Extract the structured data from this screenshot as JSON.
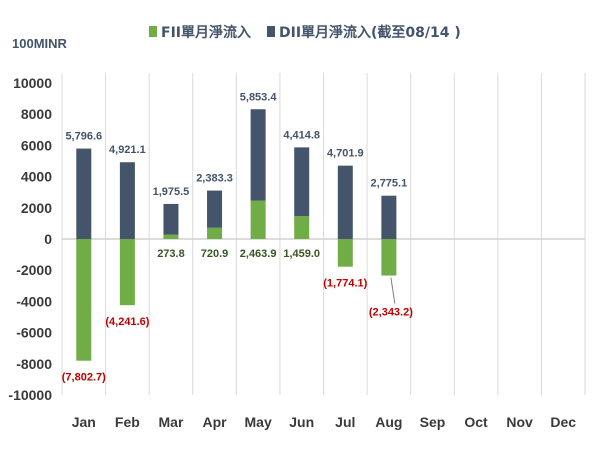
{
  "chart_data": {
    "type": "bar",
    "unit_label": "100MINR",
    "categories": [
      "Jan",
      "Feb",
      "Mar",
      "Apr",
      "May",
      "Jun",
      "Jul",
      "Aug",
      "Sep",
      "Oct",
      "Nov",
      "Dec"
    ],
    "series": [
      {
        "name": "FII單月淨流入",
        "color": "#70ad47",
        "values": [
          -7802.7,
          -4241.6,
          273.8,
          720.9,
          2463.9,
          1459.0,
          -1774.1,
          -2343.2,
          null,
          null,
          null,
          null
        ],
        "labels": [
          "(7,802.7)",
          "(4,241.6)",
          "273.8",
          "720.9",
          "2,463.9",
          "1,459.0",
          "(1,774.1)",
          "(2,343.2)",
          null,
          null,
          null,
          null
        ]
      },
      {
        "name": "DII單月淨流入(截至08/14 )",
        "color": "#44546a",
        "values": [
          5796.6,
          4921.1,
          1975.5,
          2383.3,
          5853.4,
          4414.8,
          4701.9,
          2775.1,
          null,
          null,
          null,
          null
        ],
        "labels": [
          "5,796.6",
          "4,921.1",
          "1,975.5",
          "2,383.3",
          "5,853.4",
          "4,414.8",
          "4,701.9",
          "2,775.1",
          null,
          null,
          null,
          null
        ]
      }
    ],
    "ylim": [
      -10000,
      10000
    ],
    "yticks": [
      10000,
      8000,
      6000,
      4000,
      2000,
      0,
      -2000,
      -4000,
      -6000,
      -8000,
      -10000
    ],
    "ytick_labels": [
      "10000",
      "8000",
      "6000",
      "4000",
      "2000",
      "0",
      "-2000",
      "-4000",
      "-6000",
      "-8000",
      "-10000"
    ],
    "stacking": "stacked",
    "grid": "vertical",
    "legend_position": "top",
    "label_colors": {
      "negative": "#c00000",
      "positive_fii": "#375623",
      "dii": "#44546a"
    }
  }
}
